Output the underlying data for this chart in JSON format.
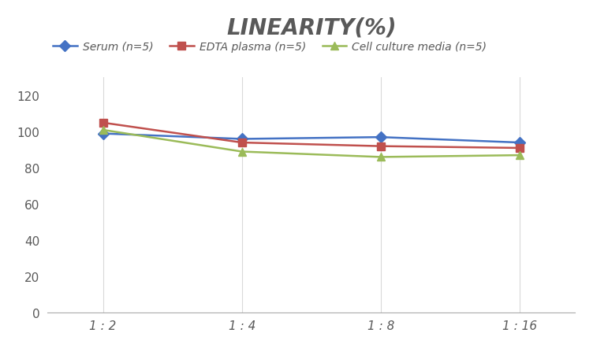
{
  "title": "LINEARITY(%)",
  "x_labels": [
    "1 : 2",
    "1 : 4",
    "1 : 8",
    "1 : 16"
  ],
  "x_positions": [
    0,
    1,
    2,
    3
  ],
  "series": [
    {
      "label": "Serum (n=5)",
      "values": [
        99,
        96,
        97,
        94
      ],
      "color": "#4472C4",
      "marker": "D",
      "marker_color": "#4472C4",
      "linewidth": 1.8
    },
    {
      "label": "EDTA plasma (n=5)",
      "values": [
        105,
        94,
        92,
        91
      ],
      "color": "#C0504D",
      "marker": "s",
      "marker_color": "#C0504D",
      "linewidth": 1.8
    },
    {
      "label": "Cell culture media (n=5)",
      "values": [
        101,
        89,
        86,
        87
      ],
      "color": "#9BBB59",
      "marker": "^",
      "marker_color": "#9BBB59",
      "linewidth": 1.8
    }
  ],
  "ylim": [
    0,
    130
  ],
  "yticks": [
    0,
    20,
    40,
    60,
    80,
    100,
    120
  ],
  "grid_color": "#D9D9D9",
  "background_color": "#FFFFFF",
  "title_fontsize": 20,
  "title_fontstyle": "italic",
  "title_fontweight": "bold",
  "legend_fontsize": 10,
  "tick_fontsize": 11,
  "title_color": "#595959"
}
